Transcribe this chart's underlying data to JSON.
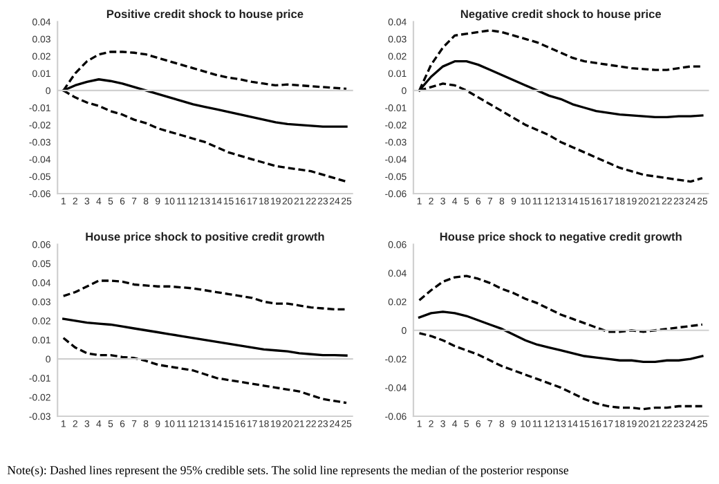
{
  "chart_data": [
    {
      "type": "line",
      "title": "Positive credit shock to house price",
      "categories": [
        "1",
        "2",
        "3",
        "4",
        "5",
        "6",
        "7",
        "8",
        "9",
        "10",
        "11",
        "12",
        "13",
        "14",
        "15",
        "16",
        "17",
        "18",
        "19",
        "20",
        "21",
        "22",
        "23",
        "24",
        "25"
      ],
      "ylim": [
        -0.06,
        0.04
      ],
      "yticks": [
        -0.06,
        -0.05,
        -0.04,
        -0.03,
        -0.02,
        -0.01,
        0,
        0.01,
        0.02,
        0.03,
        0.04
      ],
      "series": [
        {
          "color": "#000000",
          "line_style": "dashed",
          "values": [
            0,
            0.01,
            0.017,
            0.021,
            0.0225,
            0.0225,
            0.022,
            0.021,
            0.019,
            0.017,
            0.015,
            0.013,
            0.011,
            0.009,
            0.0075,
            0.0065,
            0.005,
            0.004,
            0.003,
            0.0035,
            0.003,
            0.0025,
            0.002,
            0.0015,
            0.001
          ]
        },
        {
          "color": "#000000",
          "line_style": "solid",
          "values": [
            0,
            0.003,
            0.005,
            0.0065,
            0.0055,
            0.004,
            0.002,
            0,
            -0.002,
            -0.004,
            -0.006,
            -0.008,
            -0.0095,
            -0.011,
            -0.0125,
            -0.014,
            -0.0155,
            -0.017,
            -0.0185,
            -0.0195,
            -0.02,
            -0.0205,
            -0.021,
            -0.021,
            -0.021
          ]
        },
        {
          "color": "#000000",
          "line_style": "dashed",
          "values": [
            0,
            -0.004,
            -0.007,
            -0.009,
            -0.012,
            -0.014,
            -0.017,
            -0.019,
            -0.022,
            -0.024,
            -0.026,
            -0.028,
            -0.03,
            -0.033,
            -0.036,
            -0.038,
            -0.04,
            -0.042,
            -0.044,
            -0.045,
            -0.046,
            -0.047,
            -0.049,
            -0.051,
            -0.053
          ]
        }
      ]
    },
    {
      "type": "line",
      "title": "Negative credit shock to house price",
      "categories": [
        "1",
        "2",
        "3",
        "4",
        "5",
        "6",
        "7",
        "8",
        "9",
        "10",
        "11",
        "12",
        "13",
        "14",
        "15",
        "16",
        "17",
        "18",
        "19",
        "20",
        "21",
        "22",
        "23",
        "24",
        "25"
      ],
      "ylim": [
        -0.06,
        0.04
      ],
      "yticks": [
        -0.06,
        -0.05,
        -0.04,
        -0.03,
        -0.02,
        -0.01,
        0,
        0.01,
        0.02,
        0.03,
        0.04
      ],
      "series": [
        {
          "color": "#000000",
          "line_style": "dashed",
          "values": [
            0,
            0.015,
            0.025,
            0.032,
            0.033,
            0.034,
            0.035,
            0.034,
            0.032,
            0.03,
            0.028,
            0.025,
            0.022,
            0.019,
            0.017,
            0.016,
            0.015,
            0.014,
            0.013,
            0.0125,
            0.012,
            0.012,
            0.013,
            0.014,
            0.014
          ]
        },
        {
          "color": "#000000",
          "line_style": "solid",
          "values": [
            0,
            0.008,
            0.014,
            0.017,
            0.017,
            0.015,
            0.012,
            0.009,
            0.006,
            0.003,
            0,
            -0.003,
            -0.005,
            -0.008,
            -0.01,
            -0.012,
            -0.013,
            -0.014,
            -0.0145,
            -0.015,
            -0.0155,
            -0.0155,
            -0.015,
            -0.015,
            -0.0145
          ]
        },
        {
          "color": "#000000",
          "line_style": "dashed",
          "values": [
            0,
            0.002,
            0.004,
            0.003,
            0,
            -0.004,
            -0.008,
            -0.012,
            -0.016,
            -0.02,
            -0.023,
            -0.026,
            -0.03,
            -0.033,
            -0.036,
            -0.039,
            -0.042,
            -0.045,
            -0.047,
            -0.049,
            -0.05,
            -0.051,
            -0.052,
            -0.053,
            -0.051
          ]
        }
      ]
    },
    {
      "type": "line",
      "title": "House price shock to positive credit growth",
      "categories": [
        "1",
        "2",
        "3",
        "4",
        "5",
        "6",
        "7",
        "8",
        "9",
        "10",
        "11",
        "12",
        "13",
        "14",
        "15",
        "16",
        "17",
        "18",
        "19",
        "20",
        "21",
        "22",
        "23",
        "24",
        "25"
      ],
      "ylim": [
        -0.03,
        0.06
      ],
      "yticks": [
        -0.03,
        -0.02,
        -0.01,
        0,
        0.01,
        0.02,
        0.03,
        0.04,
        0.05,
        0.06
      ],
      "series": [
        {
          "color": "#000000",
          "line_style": "dashed",
          "values": [
            0.033,
            0.035,
            0.038,
            0.041,
            0.041,
            0.0405,
            0.039,
            0.0385,
            0.038,
            0.038,
            0.0375,
            0.037,
            0.036,
            0.035,
            0.034,
            0.033,
            0.032,
            0.03,
            0.029,
            0.029,
            0.028,
            0.027,
            0.0265,
            0.026,
            0.026
          ]
        },
        {
          "color": "#000000",
          "line_style": "solid",
          "values": [
            0.021,
            0.02,
            0.019,
            0.0185,
            0.018,
            0.017,
            0.016,
            0.015,
            0.014,
            0.013,
            0.012,
            0.011,
            0.01,
            0.009,
            0.008,
            0.007,
            0.006,
            0.005,
            0.0045,
            0.004,
            0.003,
            0.0025,
            0.002,
            0.002,
            0.0018
          ]
        },
        {
          "color": "#000000",
          "line_style": "dashed",
          "values": [
            0.011,
            0.006,
            0.003,
            0.002,
            0.002,
            0.001,
            0.0005,
            -0.001,
            -0.003,
            -0.004,
            -0.005,
            -0.006,
            -0.008,
            -0.01,
            -0.011,
            -0.012,
            -0.013,
            -0.014,
            -0.015,
            -0.016,
            -0.017,
            -0.019,
            -0.021,
            -0.022,
            -0.023
          ]
        }
      ]
    },
    {
      "type": "line",
      "title": "House price shock to negative credit growth",
      "categories": [
        "1",
        "2",
        "3",
        "4",
        "5",
        "6",
        "7",
        "8",
        "9",
        "10",
        "11",
        "12",
        "13",
        "14",
        "15",
        "16",
        "17",
        "18",
        "19",
        "20",
        "21",
        "22",
        "23",
        "24",
        "25"
      ],
      "ylim": [
        -0.06,
        0.06
      ],
      "yticks": [
        -0.06,
        -0.04,
        -0.02,
        0,
        0.02,
        0.04,
        0.06
      ],
      "annotations": [
        "Note(s): Dashed lines represent the 95% credible sets. The solid line represents the median of the posterior response"
      ],
      "series": [
        {
          "color": "#000000",
          "line_style": "dashed",
          "values": [
            0.021,
            0.028,
            0.034,
            0.037,
            0.038,
            0.036,
            0.033,
            0.029,
            0.026,
            0.022,
            0.019,
            0.015,
            0.011,
            0.008,
            0.005,
            0.002,
            -0.001,
            -0.001,
            0,
            -0.001,
            0,
            0.001,
            0.002,
            0.003,
            0.004
          ]
        },
        {
          "color": "#000000",
          "line_style": "solid",
          "values": [
            0.009,
            0.012,
            0.013,
            0.012,
            0.01,
            0.007,
            0.004,
            0.001,
            -0.003,
            -0.007,
            -0.01,
            -0.012,
            -0.014,
            -0.016,
            -0.018,
            -0.019,
            -0.02,
            -0.021,
            -0.021,
            -0.022,
            -0.022,
            -0.021,
            -0.021,
            -0.02,
            -0.018
          ]
        },
        {
          "color": "#000000",
          "line_style": "dashed",
          "values": [
            -0.002,
            -0.004,
            -0.007,
            -0.011,
            -0.014,
            -0.017,
            -0.021,
            -0.025,
            -0.028,
            -0.031,
            -0.034,
            -0.037,
            -0.04,
            -0.044,
            -0.048,
            -0.051,
            -0.053,
            -0.054,
            -0.054,
            -0.055,
            -0.054,
            -0.054,
            -0.053,
            -0.053,
            -0.053
          ]
        }
      ]
    }
  ]
}
